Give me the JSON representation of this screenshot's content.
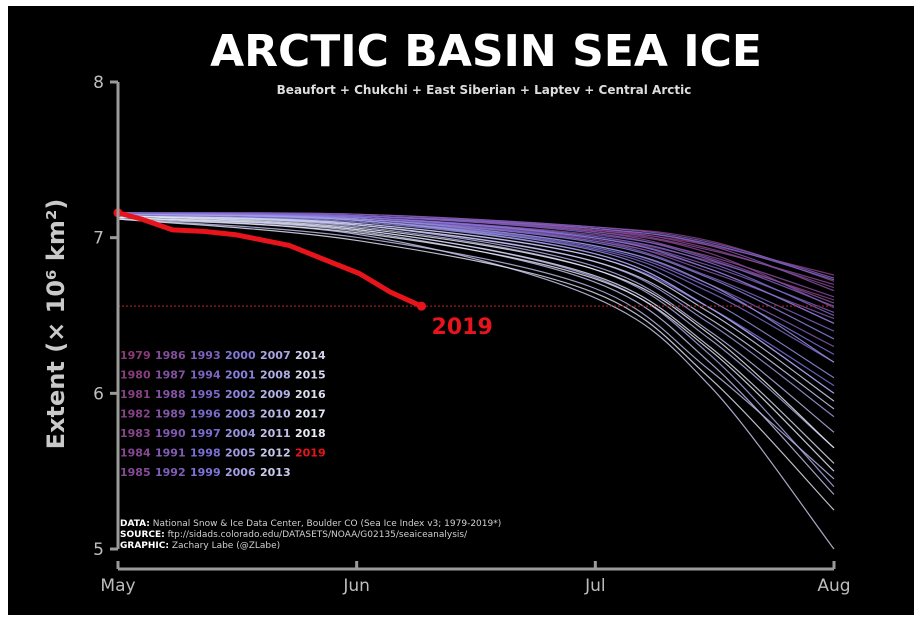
{
  "chart_data": {
    "type": "line",
    "title": "ARCTIC BASIN SEA ICE",
    "subtitle": "Beaufort + Chukchi + East Siberian + Laptev + Central Arctic",
    "ylabel": "Extent (× 10⁶ km²)",
    "xlabel": "",
    "x_ticks": [
      "May",
      "Jun",
      "Jul",
      "Aug"
    ],
    "y_ticks": [
      5,
      6,
      7,
      8
    ],
    "ylim": [
      5,
      8
    ],
    "x_domain": [
      "May 1",
      "Aug 1"
    ],
    "grid": false,
    "legend_position": "left",
    "legend_years": [
      [
        "1979",
        "1986",
        "1993",
        "2000",
        "2007",
        "2014"
      ],
      [
        "1980",
        "1987",
        "1994",
        "2001",
        "2008",
        "2015"
      ],
      [
        "1981",
        "1988",
        "1995",
        "2002",
        "2009",
        "2016"
      ],
      [
        "1982",
        "1989",
        "1996",
        "2003",
        "2010",
        "2017"
      ],
      [
        "1983",
        "1990",
        "1997",
        "2004",
        "2011",
        "2018"
      ],
      [
        "1984",
        "1991",
        "1998",
        "2005",
        "2012",
        "2019"
      ],
      [
        "1985",
        "1992",
        "1999",
        "2006",
        "2013"
      ]
    ],
    "highlight": {
      "name": "2019",
      "color": "#e8141c",
      "x": [
        "May 1",
        "May 4",
        "May 8",
        "May 12",
        "May 16",
        "May 19",
        "May 23",
        "May 27",
        "Jun 1",
        "Jun 5",
        "Jun 9"
      ],
      "values": [
        7.16,
        7.12,
        7.05,
        7.04,
        7.02,
        6.99,
        6.95,
        6.87,
        6.77,
        6.65,
        6.56
      ]
    },
    "reference_line": {
      "value": 6.56,
      "color": "#9b1c1c"
    },
    "background_series": [
      {
        "year": 1979,
        "x": [
          "May 1",
          "Jun 1",
          "Jul 1",
          "Jul 16",
          "Aug 1"
        ],
        "values": [
          7.15,
          7.14,
          7.05,
          6.95,
          6.76
        ]
      },
      {
        "year": 1980,
        "x": [
          "May 1",
          "Jun 1",
          "Jul 1",
          "Jul 16",
          "Aug 1"
        ],
        "values": [
          7.16,
          7.14,
          7.07,
          6.98,
          6.72
        ]
      },
      {
        "year": 1981,
        "x": [
          "May 1",
          "Jun 1",
          "Jul 1",
          "Jul 16",
          "Aug 1"
        ],
        "values": [
          7.15,
          7.13,
          7.0,
          6.85,
          6.6
        ]
      },
      {
        "year": 1982,
        "x": [
          "May 1",
          "Jun 1",
          "Jul 1",
          "Jul 16",
          "Aug 1"
        ],
        "values": [
          7.16,
          7.15,
          7.06,
          6.93,
          6.68
        ]
      },
      {
        "year": 1983,
        "x": [
          "May 1",
          "Jun 1",
          "Jul 1",
          "Jul 16",
          "Aug 1"
        ],
        "values": [
          7.15,
          7.14,
          7.04,
          6.9,
          6.55
        ]
      },
      {
        "year": 1984,
        "x": [
          "May 1",
          "Jun 1",
          "Jul 1",
          "Jul 16",
          "Aug 1"
        ],
        "values": [
          7.16,
          7.13,
          6.98,
          6.8,
          6.45
        ]
      },
      {
        "year": 1985,
        "x": [
          "May 1",
          "Jun 1",
          "Jul 1",
          "Jul 16",
          "Aug 1"
        ],
        "values": [
          7.15,
          7.13,
          7.02,
          6.88,
          6.62
        ]
      },
      {
        "year": 1986,
        "x": [
          "May 1",
          "Jun 1",
          "Jul 1",
          "Jul 16",
          "Aug 1"
        ],
        "values": [
          7.16,
          7.14,
          7.05,
          6.92,
          6.7
        ]
      },
      {
        "year": 1987,
        "x": [
          "May 1",
          "Jun 1",
          "Jul 1",
          "Jul 16",
          "Aug 1"
        ],
        "values": [
          7.15,
          7.14,
          7.04,
          6.87,
          6.58
        ]
      },
      {
        "year": 1988,
        "x": [
          "May 1",
          "Jun 1",
          "Jul 1",
          "Jul 16",
          "Aug 1"
        ],
        "values": [
          7.16,
          7.14,
          7.06,
          6.95,
          6.66
        ]
      },
      {
        "year": 1989,
        "x": [
          "May 1",
          "Jun 1",
          "Jul 1",
          "Jul 16",
          "Aug 1"
        ],
        "values": [
          7.15,
          7.12,
          6.99,
          6.78,
          6.48
        ]
      },
      {
        "year": 1990,
        "x": [
          "May 1",
          "Jun 1",
          "Jul 1",
          "Jul 16",
          "Aug 1"
        ],
        "values": [
          7.15,
          7.11,
          6.95,
          6.7,
          6.3
        ]
      },
      {
        "year": 1991,
        "x": [
          "May 1",
          "Jun 1",
          "Jul 1",
          "Jul 16",
          "Aug 1"
        ],
        "values": [
          7.16,
          7.13,
          7.0,
          6.82,
          6.52
        ]
      },
      {
        "year": 1992,
        "x": [
          "May 1",
          "Jun 1",
          "Jul 1",
          "Jul 16",
          "Aug 1"
        ],
        "values": [
          7.16,
          7.15,
          7.07,
          6.97,
          6.74
        ]
      },
      {
        "year": 1993,
        "x": [
          "May 1",
          "Jun 1",
          "Jul 1",
          "Jul 16",
          "Aug 1"
        ],
        "values": [
          7.15,
          7.12,
          6.98,
          6.75,
          6.4
        ]
      },
      {
        "year": 1994,
        "x": [
          "May 1",
          "Jun 1",
          "Jul 1",
          "Jul 16",
          "Aug 1"
        ],
        "values": [
          7.16,
          7.14,
          7.03,
          6.86,
          6.56
        ]
      },
      {
        "year": 1995,
        "x": [
          "May 1",
          "Jun 1",
          "Jul 1",
          "Jul 16",
          "Aug 1"
        ],
        "values": [
          7.15,
          7.11,
          6.93,
          6.65,
          6.2
        ]
      },
      {
        "year": 1996,
        "x": [
          "May 1",
          "Jun 1",
          "Jul 1",
          "Jul 16",
          "Aug 1"
        ],
        "values": [
          7.16,
          7.14,
          7.06,
          6.96,
          6.73
        ]
      },
      {
        "year": 1997,
        "x": [
          "May 1",
          "Jun 1",
          "Jul 1",
          "Jul 16",
          "Aug 1"
        ],
        "values": [
          7.15,
          7.13,
          7.01,
          6.84,
          6.5
        ]
      },
      {
        "year": 1998,
        "x": [
          "May 1",
          "Jun 1",
          "Jul 1",
          "Jul 16",
          "Aug 1"
        ],
        "values": [
          7.15,
          7.09,
          6.88,
          6.55,
          6.05
        ]
      },
      {
        "year": 1999,
        "x": [
          "May 1",
          "Jun 1",
          "Jul 1",
          "Jul 16",
          "Aug 1"
        ],
        "values": [
          7.15,
          7.11,
          6.94,
          6.68,
          6.25
        ]
      },
      {
        "year": 2000,
        "x": [
          "May 1",
          "Jun 1",
          "Jul 1",
          "Jul 16",
          "Aug 1"
        ],
        "values": [
          7.16,
          7.13,
          7.0,
          6.8,
          6.45
        ]
      },
      {
        "year": 2001,
        "x": [
          "May 1",
          "Jun 1",
          "Jul 1",
          "Jul 16",
          "Aug 1"
        ],
        "values": [
          7.15,
          7.12,
          6.97,
          6.74,
          6.35
        ]
      },
      {
        "year": 2002,
        "x": [
          "May 1",
          "Jun 1",
          "Jul 1",
          "Jul 16",
          "Aug 1"
        ],
        "values": [
          7.14,
          7.1,
          6.9,
          6.55,
          6.0
        ]
      },
      {
        "year": 2003,
        "x": [
          "May 1",
          "Jun 1",
          "Jul 1",
          "Jul 16",
          "Aug 1"
        ],
        "values": [
          7.15,
          7.11,
          6.92,
          6.6,
          6.1
        ]
      },
      {
        "year": 2004,
        "x": [
          "May 1",
          "Jun 1",
          "Jul 1",
          "Jul 16",
          "Aug 1"
        ],
        "values": [
          7.15,
          7.12,
          6.95,
          6.7,
          6.2
        ]
      },
      {
        "year": 2005,
        "x": [
          "May 1",
          "Jun 1",
          "Jul 1",
          "Jul 16",
          "Aug 1"
        ],
        "values": [
          7.14,
          7.08,
          6.85,
          6.45,
          5.85
        ]
      },
      {
        "year": 2006,
        "x": [
          "May 1",
          "Jun 1",
          "Jul 1",
          "Jul 16",
          "Aug 1"
        ],
        "values": [
          7.15,
          7.11,
          6.9,
          6.55,
          6.0
        ]
      },
      {
        "year": 2007,
        "x": [
          "May 1",
          "Jun 1",
          "Jul 1",
          "Jul 16",
          "Aug 1"
        ],
        "values": [
          7.13,
          7.05,
          6.75,
          6.25,
          5.4
        ]
      },
      {
        "year": 2008,
        "x": [
          "May 1",
          "Jun 1",
          "Jul 1",
          "Jul 16",
          "Aug 1"
        ],
        "values": [
          7.14,
          7.07,
          6.8,
          6.35,
          5.65
        ]
      },
      {
        "year": 2009,
        "x": [
          "May 1",
          "Jun 1",
          "Jul 1",
          "Jul 16",
          "Aug 1"
        ],
        "values": [
          7.14,
          7.08,
          6.82,
          6.4,
          5.75
        ]
      },
      {
        "year": 2010,
        "x": [
          "May 1",
          "Jun 1",
          "Jul 1",
          "Jul 16",
          "Aug 1"
        ],
        "values": [
          7.12,
          7.0,
          6.68,
          6.15,
          5.45
        ]
      },
      {
        "year": 2011,
        "x": [
          "May 1",
          "Jun 1",
          "Jul 1",
          "Jul 16",
          "Aug 1"
        ],
        "values": [
          7.13,
          7.04,
          6.72,
          6.2,
          5.35
        ]
      },
      {
        "year": 2012,
        "x": [
          "May 1",
          "Jun 1",
          "Jul 1",
          "Jul 16",
          "Aug 1"
        ],
        "values": [
          7.12,
          7.02,
          6.62,
          6.05,
          5.0
        ]
      },
      {
        "year": 2013,
        "x": [
          "May 1",
          "Jun 1",
          "Jul 1",
          "Jul 16",
          "Aug 1"
        ],
        "values": [
          7.14,
          7.08,
          6.85,
          6.48,
          5.9
        ]
      },
      {
        "year": 2014,
        "x": [
          "May 1",
          "Jun 1",
          "Jul 1",
          "Jul 16",
          "Aug 1"
        ],
        "values": [
          7.14,
          7.09,
          6.88,
          6.52,
          5.95
        ]
      },
      {
        "year": 2015,
        "x": [
          "May 1",
          "Jun 1",
          "Jul 1",
          "Jul 16",
          "Aug 1"
        ],
        "values": [
          7.13,
          7.05,
          6.76,
          6.3,
          5.55
        ]
      },
      {
        "year": 2016,
        "x": [
          "May 1",
          "Jun 1",
          "Jul 1",
          "Jul 16",
          "Aug 1"
        ],
        "values": [
          7.12,
          6.98,
          6.65,
          6.1,
          5.25
        ]
      },
      {
        "year": 2017,
        "x": [
          "May 1",
          "Jun 1",
          "Jul 1",
          "Jul 16",
          "Aug 1"
        ],
        "values": [
          7.13,
          7.03,
          6.74,
          6.28,
          5.5
        ]
      },
      {
        "year": 2018,
        "x": [
          "May 1",
          "Jun 1",
          "Jul 1",
          "Jul 16",
          "Aug 1"
        ],
        "values": [
          7.14,
          7.06,
          6.8,
          6.38,
          5.65
        ]
      }
    ]
  },
  "credits": {
    "data_label": "DATA:",
    "data_text": " National Snow & Ice Data Center, Boulder CO (Sea Ice Index v3; 1979-2019*)",
    "source_label": "SOURCE:",
    "source_text": " ftp://sidads.colorado.edu/DATASETS/NOAA/G02135/seaiceanalysis/",
    "graphic_label": "GRAPHIC:",
    "graphic_text": " Zachary Labe (@ZLabe)"
  },
  "colors": {
    "background": "#000000",
    "axis": "#9a9a9a",
    "early_years": "#8a3a7a",
    "mid_years": "#7a70d8",
    "late_years": "#e8ecf4",
    "highlight": "#e8141c"
  }
}
